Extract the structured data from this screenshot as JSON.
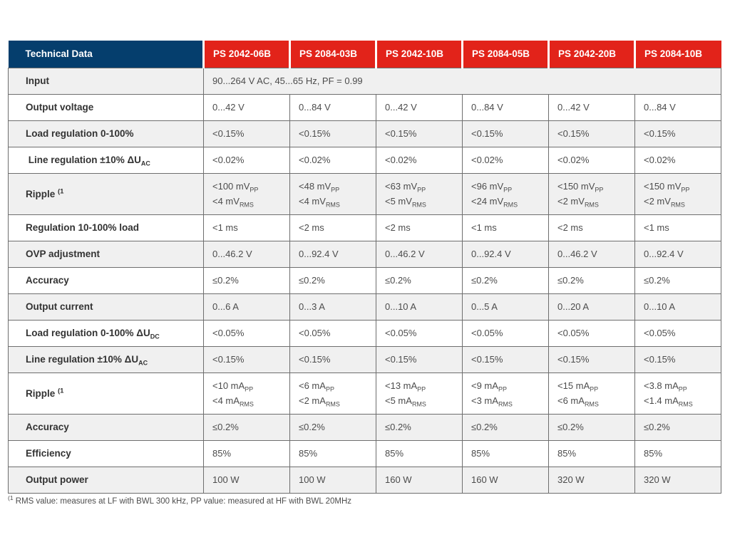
{
  "colors": {
    "header_blue": "#053e6d",
    "header_red": "#e2231a",
    "row_alt": "#f0f0f0",
    "border": "#6e6e6e",
    "label_text": "#333333",
    "value_text": "#4c4c4c"
  },
  "table": {
    "corner_label": "Technical Data",
    "columns": [
      "PS 2042-06B",
      "PS 2084-03B",
      "PS 2042-10B",
      "PS 2084-05B",
      "PS 2042-20B",
      "PS 2084-10B"
    ],
    "rows": [
      {
        "label": [
          {
            "t": "Input"
          }
        ],
        "span": true,
        "span_value": [
          [
            {
              "t": "90...264 V AC, 45...65 Hz, PF = 0.99"
            }
          ]
        ]
      },
      {
        "label": [
          {
            "t": "Output voltage"
          }
        ],
        "cells": [
          [
            [
              {
                "t": "0...42 V"
              }
            ]
          ],
          [
            [
              {
                "t": "0...84 V"
              }
            ]
          ],
          [
            [
              {
                "t": "0...42 V"
              }
            ]
          ],
          [
            [
              {
                "t": "0...84 V"
              }
            ]
          ],
          [
            [
              {
                "t": "0...42 V"
              }
            ]
          ],
          [
            [
              {
                "t": "0...84 V"
              }
            ]
          ]
        ]
      },
      {
        "label": [
          {
            "t": "Load regulation 0-100%"
          }
        ],
        "cells": [
          [
            [
              {
                "t": "<0.15%"
              }
            ]
          ],
          [
            [
              {
                "t": "<0.15%"
              }
            ]
          ],
          [
            [
              {
                "t": "<0.15%"
              }
            ]
          ],
          [
            [
              {
                "t": "<0.15%"
              }
            ]
          ],
          [
            [
              {
                "t": "<0.15%"
              }
            ]
          ],
          [
            [
              {
                "t": "<0.15%"
              }
            ]
          ]
        ]
      },
      {
        "label": [
          {
            "t": " Line regulation ±10% ΔU"
          },
          {
            "t": "AC",
            "m": "sub"
          }
        ],
        "cells": [
          [
            [
              {
                "t": "<0.02%"
              }
            ]
          ],
          [
            [
              {
                "t": "<0.02%"
              }
            ]
          ],
          [
            [
              {
                "t": "<0.02%"
              }
            ]
          ],
          [
            [
              {
                "t": "<0.02%"
              }
            ]
          ],
          [
            [
              {
                "t": "<0.02%"
              }
            ]
          ],
          [
            [
              {
                "t": "<0.02%"
              }
            ]
          ]
        ]
      },
      {
        "label": [
          {
            "t": "Ripple "
          },
          {
            "t": "(1",
            "m": "sup"
          }
        ],
        "tall": true,
        "cells": [
          [
            [
              {
                "t": "<100 mV"
              },
              {
                "t": "PP",
                "m": "sub"
              }
            ],
            [
              {
                "t": "<4 mV"
              },
              {
                "t": "RMS",
                "m": "sub"
              }
            ]
          ],
          [
            [
              {
                "t": "<48 mV"
              },
              {
                "t": "PP",
                "m": "sub"
              }
            ],
            [
              {
                "t": "<4 mV"
              },
              {
                "t": "RMS",
                "m": "sub"
              }
            ]
          ],
          [
            [
              {
                "t": "<63 mV"
              },
              {
                "t": "PP",
                "m": "sub"
              }
            ],
            [
              {
                "t": "<5 mV"
              },
              {
                "t": "RMS",
                "m": "sub"
              }
            ]
          ],
          [
            [
              {
                "t": "<96 mV"
              },
              {
                "t": "PP",
                "m": "sub"
              }
            ],
            [
              {
                "t": "<24 mV"
              },
              {
                "t": "RMS",
                "m": "sub"
              }
            ]
          ],
          [
            [
              {
                "t": "<150 mV"
              },
              {
                "t": "PP",
                "m": "sub"
              }
            ],
            [
              {
                "t": "<2 mV"
              },
              {
                "t": "RMS",
                "m": "sub"
              }
            ]
          ],
          [
            [
              {
                "t": "<150 mV"
              },
              {
                "t": "PP",
                "m": "sub"
              }
            ],
            [
              {
                "t": "<2 mV"
              },
              {
                "t": "RMS",
                "m": "sub"
              }
            ]
          ]
        ]
      },
      {
        "label": [
          {
            "t": "Regulation 10-100% load"
          }
        ],
        "cells": [
          [
            [
              {
                "t": "<1 ms"
              }
            ]
          ],
          [
            [
              {
                "t": "<2 ms"
              }
            ]
          ],
          [
            [
              {
                "t": "<2 ms"
              }
            ]
          ],
          [
            [
              {
                "t": "<1 ms"
              }
            ]
          ],
          [
            [
              {
                "t": "<2 ms"
              }
            ]
          ],
          [
            [
              {
                "t": "<1 ms"
              }
            ]
          ]
        ]
      },
      {
        "label": [
          {
            "t": "OVP adjustment"
          }
        ],
        "cells": [
          [
            [
              {
                "t": "0...46.2 V"
              }
            ]
          ],
          [
            [
              {
                "t": "0...92.4 V"
              }
            ]
          ],
          [
            [
              {
                "t": "0...46.2 V"
              }
            ]
          ],
          [
            [
              {
                "t": "0...92.4 V"
              }
            ]
          ],
          [
            [
              {
                "t": "0...46.2 V"
              }
            ]
          ],
          [
            [
              {
                "t": "0...92.4 V"
              }
            ]
          ]
        ]
      },
      {
        "label": [
          {
            "t": "Accuracy"
          }
        ],
        "cells": [
          [
            [
              {
                "t": "≤0.2%"
              }
            ]
          ],
          [
            [
              {
                "t": "≤0.2%"
              }
            ]
          ],
          [
            [
              {
                "t": "≤0.2%"
              }
            ]
          ],
          [
            [
              {
                "t": "≤0.2%"
              }
            ]
          ],
          [
            [
              {
                "t": "≤0.2%"
              }
            ]
          ],
          [
            [
              {
                "t": "≤0.2%"
              }
            ]
          ]
        ]
      },
      {
        "label": [
          {
            "t": "Output current"
          }
        ],
        "cells": [
          [
            [
              {
                "t": "0...6 A"
              }
            ]
          ],
          [
            [
              {
                "t": "0...3 A"
              }
            ]
          ],
          [
            [
              {
                "t": "0...10 A"
              }
            ]
          ],
          [
            [
              {
                "t": "0...5 A"
              }
            ]
          ],
          [
            [
              {
                "t": "0...20 A"
              }
            ]
          ],
          [
            [
              {
                "t": "0...10 A"
              }
            ]
          ]
        ]
      },
      {
        "label": [
          {
            "t": "Load regulation 0-100% ΔU"
          },
          {
            "t": "DC",
            "m": "sub"
          }
        ],
        "cells": [
          [
            [
              {
                "t": "<0.05%"
              }
            ]
          ],
          [
            [
              {
                "t": "<0.05%"
              }
            ]
          ],
          [
            [
              {
                "t": "<0.05%"
              }
            ]
          ],
          [
            [
              {
                "t": "<0.05%"
              }
            ]
          ],
          [
            [
              {
                "t": "<0.05%"
              }
            ]
          ],
          [
            [
              {
                "t": "<0.05%"
              }
            ]
          ]
        ]
      },
      {
        "label": [
          {
            "t": "Line regulation ±10% ΔU"
          },
          {
            "t": "AC",
            "m": "sub"
          }
        ],
        "cells": [
          [
            [
              {
                "t": "<0.15%"
              }
            ]
          ],
          [
            [
              {
                "t": "<0.15%"
              }
            ]
          ],
          [
            [
              {
                "t": "<0.15%"
              }
            ]
          ],
          [
            [
              {
                "t": "<0.15%"
              }
            ]
          ],
          [
            [
              {
                "t": "<0.15%"
              }
            ]
          ],
          [
            [
              {
                "t": "<0.15%"
              }
            ]
          ]
        ]
      },
      {
        "label": [
          {
            "t": "Ripple "
          },
          {
            "t": "(1",
            "m": "sup"
          }
        ],
        "tall": true,
        "cells": [
          [
            [
              {
                "t": "<10 mA"
              },
              {
                "t": "PP",
                "m": "sub"
              }
            ],
            [
              {
                "t": "<4 mA"
              },
              {
                "t": "RMS",
                "m": "sub"
              }
            ]
          ],
          [
            [
              {
                "t": "<6 mA"
              },
              {
                "t": "PP",
                "m": "sub"
              }
            ],
            [
              {
                "t": "<2 mA"
              },
              {
                "t": "RMS",
                "m": "sub"
              }
            ]
          ],
          [
            [
              {
                "t": "<13 mA"
              },
              {
                "t": "PP",
                "m": "sub"
              }
            ],
            [
              {
                "t": "<5 mA"
              },
              {
                "t": "RMS",
                "m": "sub"
              }
            ]
          ],
          [
            [
              {
                "t": "<9 mA"
              },
              {
                "t": "PP",
                "m": "sub"
              }
            ],
            [
              {
                "t": "<3 mA"
              },
              {
                "t": "RMS",
                "m": "sub"
              }
            ]
          ],
          [
            [
              {
                "t": "<15 mA"
              },
              {
                "t": "PP",
                "m": "sub"
              }
            ],
            [
              {
                "t": "<6 mA"
              },
              {
                "t": "RMS",
                "m": "sub"
              }
            ]
          ],
          [
            [
              {
                "t": "<3.8 mA"
              },
              {
                "t": "PP",
                "m": "sub"
              }
            ],
            [
              {
                "t": "<1.4 mA"
              },
              {
                "t": "RMS",
                "m": "sub"
              }
            ]
          ]
        ]
      },
      {
        "label": [
          {
            "t": "Accuracy"
          }
        ],
        "cells": [
          [
            [
              {
                "t": "≤0.2%"
              }
            ]
          ],
          [
            [
              {
                "t": "≤0.2%"
              }
            ]
          ],
          [
            [
              {
                "t": "≤0.2%"
              }
            ]
          ],
          [
            [
              {
                "t": "≤0.2%"
              }
            ]
          ],
          [
            [
              {
                "t": "≤0.2%"
              }
            ]
          ],
          [
            [
              {
                "t": "≤0.2%"
              }
            ]
          ]
        ]
      },
      {
        "label": [
          {
            "t": "Efficiency"
          }
        ],
        "cells": [
          [
            [
              {
                "t": "85%"
              }
            ]
          ],
          [
            [
              {
                "t": "85%"
              }
            ]
          ],
          [
            [
              {
                "t": "85%"
              }
            ]
          ],
          [
            [
              {
                "t": "85%"
              }
            ]
          ],
          [
            [
              {
                "t": "85%"
              }
            ]
          ],
          [
            [
              {
                "t": "85%"
              }
            ]
          ]
        ]
      },
      {
        "label": [
          {
            "t": "Output power"
          }
        ],
        "cells": [
          [
            [
              {
                "t": "100 W"
              }
            ]
          ],
          [
            [
              {
                "t": "100 W"
              }
            ]
          ],
          [
            [
              {
                "t": "160 W"
              }
            ]
          ],
          [
            [
              {
                "t": "160 W"
              }
            ]
          ],
          [
            [
              {
                "t": "320 W"
              }
            ]
          ],
          [
            [
              {
                "t": "320 W"
              }
            ]
          ]
        ]
      }
    ]
  },
  "footnote": {
    "marker": "(1",
    "text": " RMS value: measures at LF with BWL 300 kHz, PP value: measured at HF with BWL 20MHz"
  }
}
